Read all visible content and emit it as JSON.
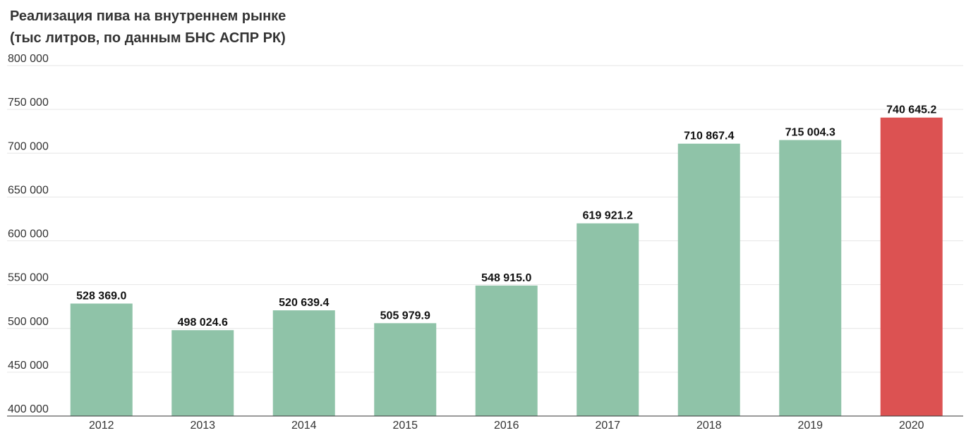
{
  "chart_data": {
    "type": "bar",
    "title": "Реализация пива на внутреннем рынке",
    "subtitle": "(тыс литров, по данным БНС АСПР РК)",
    "xlabel": "",
    "ylabel": "",
    "categories": [
      "2012",
      "2013",
      "2014",
      "2015",
      "2016",
      "2017",
      "2018",
      "2019",
      "2020"
    ],
    "values": [
      528369.0,
      498024.6,
      520639.4,
      505979.9,
      548915.0,
      619921.2,
      710867.4,
      715004.3,
      740645.2
    ],
    "value_labels": [
      "528 369.0",
      "498 024.6",
      "520 639.4",
      "505 979.9",
      "548 915.0",
      "619 921.2",
      "710 867.4",
      "715 004.3",
      "740 645.2"
    ],
    "ylim": [
      400000,
      800000
    ],
    "yticks": [
      400000,
      450000,
      500000,
      550000,
      600000,
      650000,
      700000,
      750000,
      800000
    ],
    "ytick_labels": [
      "400 000",
      "450 000",
      "500 000",
      "550 000",
      "600 000",
      "650 000",
      "700 000",
      "750 000",
      "800 000"
    ],
    "grid": true,
    "legend": "none",
    "colors": {
      "default": "#8fc3a8",
      "highlight": "#dc5252",
      "highlight_categories": [
        "2020"
      ],
      "grid": "#e6e6e6",
      "axis": "#333333"
    }
  }
}
